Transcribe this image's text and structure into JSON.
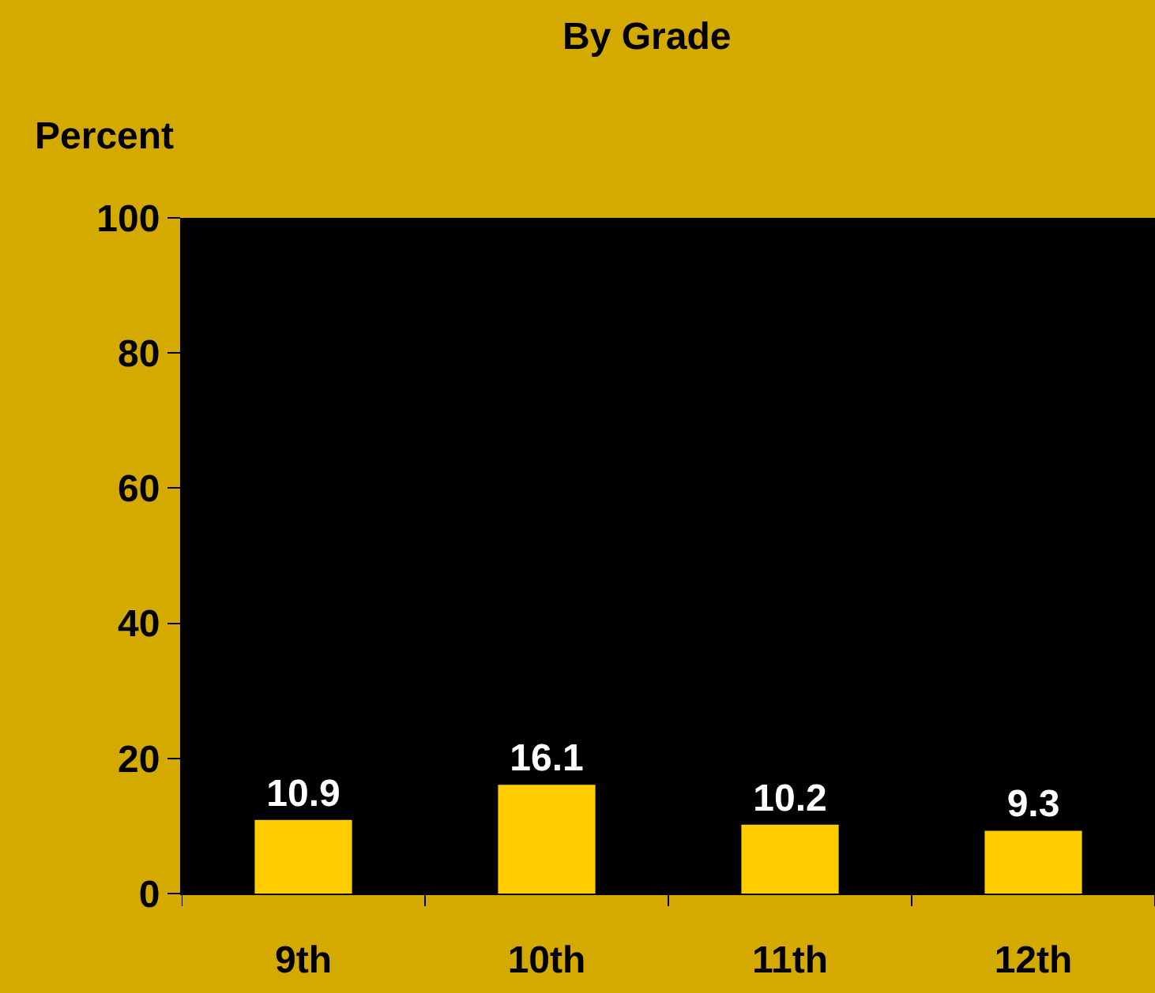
{
  "chart_data": {
    "type": "bar",
    "title": "By Grade",
    "ylabel": "Percent",
    "categories": [
      "9th",
      "10th",
      "11th",
      "12th"
    ],
    "values": [
      10.9,
      16.1,
      10.2,
      9.3
    ],
    "color": "#ffcc00",
    "ylim": [
      0,
      100
    ],
    "yticks": [
      0,
      20,
      40,
      60,
      80,
      100
    ],
    "data_labels": true
  }
}
